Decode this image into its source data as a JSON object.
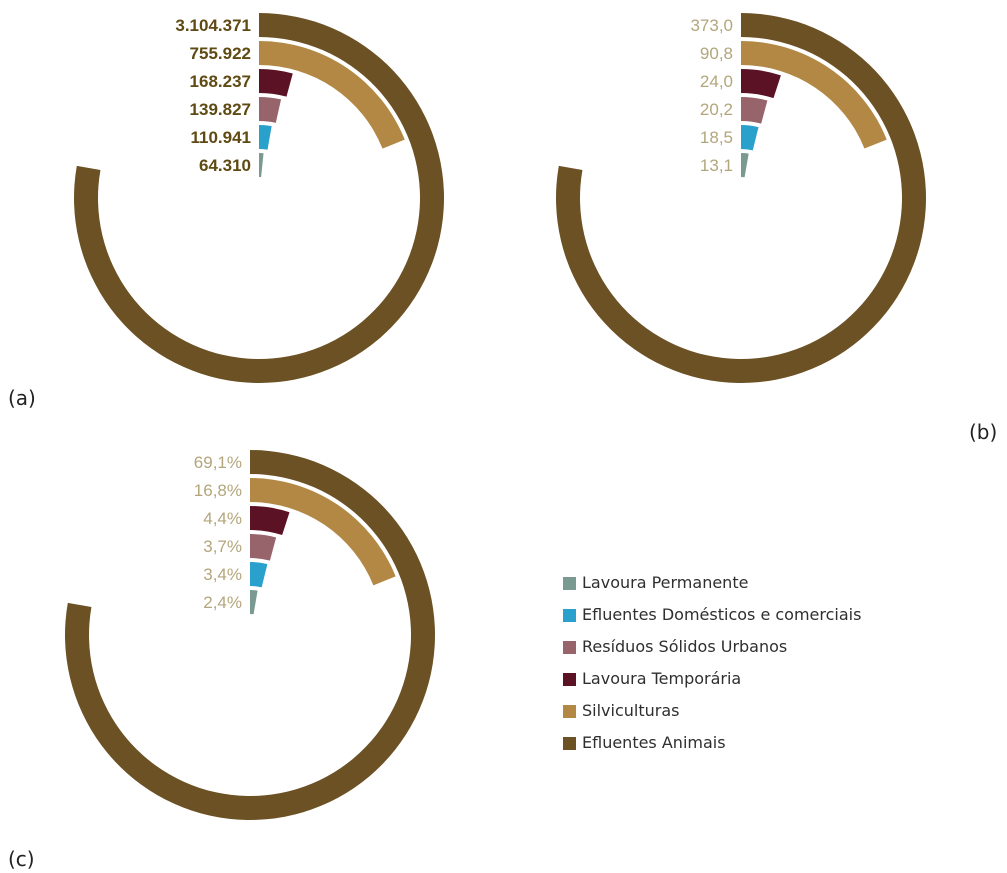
{
  "chart_data": [
    {
      "type": "radial-bar",
      "panel_label": "(a)",
      "categories": [
        "Efluentes Animais",
        "Silviculturas",
        "Lavoura Temporária",
        "Resíduos Sólidos Urbanos",
        "Efluentes Domésticos e comerciais",
        "Lavoura Permanente"
      ],
      "values": [
        3104371,
        755922,
        168237,
        139827,
        110941,
        64310
      ],
      "value_labels": [
        "3.104.371",
        "755.922",
        "168.237",
        "139.827",
        "110.941",
        "64.310"
      ],
      "value_label_color": "#5e4a12"
    },
    {
      "type": "radial-bar",
      "panel_label": "(b)",
      "categories": [
        "Efluentes Animais",
        "Silviculturas",
        "Lavoura Temporária",
        "Resíduos Sólidos Urbanos",
        "Efluentes Domésticos e comerciais",
        "Lavoura Permanente"
      ],
      "values": [
        373.0,
        90.8,
        24.0,
        20.2,
        18.5,
        13.1
      ],
      "value_labels": [
        "373,0",
        "90,8",
        "24,0",
        "20,2",
        "18,5",
        "13,1"
      ],
      "value_label_color": "#b3a67c"
    },
    {
      "type": "radial-bar",
      "panel_label": "(c)",
      "categories": [
        "Efluentes Animais",
        "Silviculturas",
        "Lavoura Temporária",
        "Resíduos Sólidos Urbanos",
        "Efluentes Domésticos e comerciais",
        "Lavoura Permanente"
      ],
      "values": [
        69.1,
        16.8,
        4.4,
        3.7,
        3.4,
        2.4
      ],
      "value_labels": [
        "69,1%",
        "16,8%",
        "4,4%",
        "3,7%",
        "3,4%",
        "2,4%"
      ],
      "value_label_color": "#b3a67c"
    }
  ],
  "legend": {
    "position": "bottom-right",
    "items": [
      {
        "label": "Lavoura Permanente",
        "color": "#7a9990"
      },
      {
        "label": "Efluentes Domésticos e comerciais",
        "color": "#2aa0cc"
      },
      {
        "label": "Resíduos Sólidos Urbanos",
        "color": "#98646c"
      },
      {
        "label": "Lavoura Temporária",
        "color": "#5a1224"
      },
      {
        "label": "Silviculturas",
        "color": "#b28844"
      },
      {
        "label": "Efluentes Animais",
        "color": "#6b5123"
      }
    ]
  },
  "colors": {
    "Efluentes Animais": "#6b5123",
    "Silviculturas": "#b28844",
    "Lavoura Temporária": "#5a1224",
    "Resíduos Sólidos Urbanos": "#98646c",
    "Efluentes Domésticos e comerciais": "#2aa0cc",
    "Lavoura Permanente": "#7a9990",
    "panel_label": "#222222"
  }
}
